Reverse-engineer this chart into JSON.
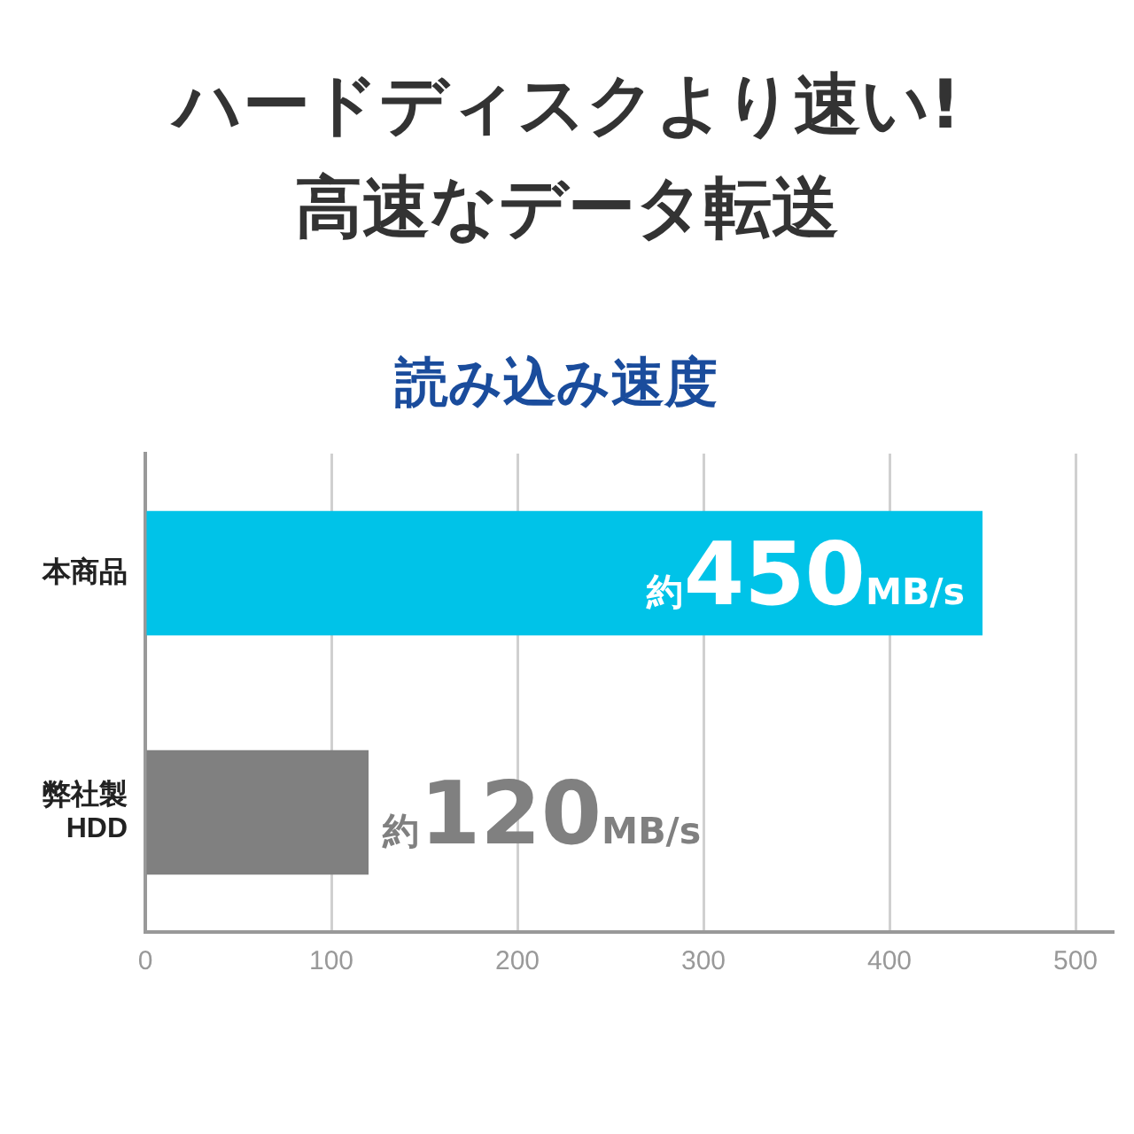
{
  "chart_data": {
    "type": "bar",
    "orientation": "horizontal",
    "title": "読み込み速度",
    "annotations": [
      "ハードディスクより速い!",
      "高速なデータ転送"
    ],
    "categories": [
      "本商品",
      "弊社製\nHDD"
    ],
    "values": [
      450,
      120
    ],
    "colors": [
      "#00c3e8",
      "#808080"
    ],
    "value_labels": [
      "約450MB/s",
      "約120MB/s"
    ],
    "xlim": [
      0,
      520
    ],
    "xticks": [
      0,
      100,
      200,
      300,
      400,
      500
    ],
    "grid": "x",
    "legend": false
  }
}
